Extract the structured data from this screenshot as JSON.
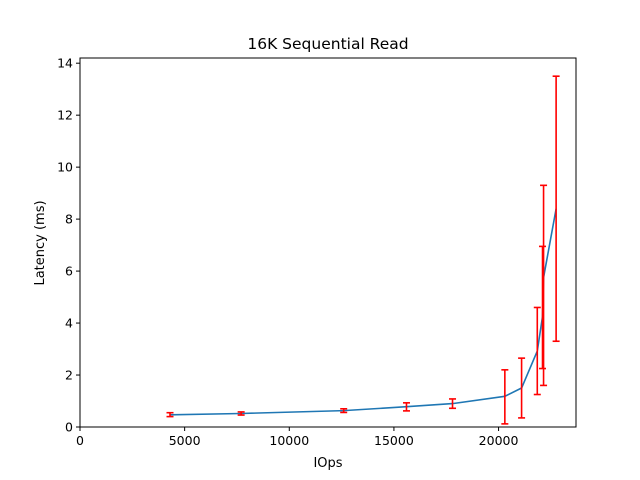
{
  "chart_data": {
    "type": "line",
    "title": "16K  Sequential Read",
    "xlabel": "IOps",
    "ylabel": "Latency (ms)",
    "xlim": [
      0,
      23700
    ],
    "ylim": [
      0,
      14.2
    ],
    "xticks": [
      0,
      5000,
      10000,
      15000,
      20000
    ],
    "xtick_labels": [
      "0",
      "5000",
      "10000",
      "15000",
      "20000"
    ],
    "yticks": [
      0,
      2,
      4,
      6,
      8,
      10,
      12,
      14
    ],
    "ytick_labels": [
      "0",
      "2",
      "4",
      "6",
      "8",
      "10",
      "12",
      "14"
    ],
    "grid": false,
    "legend": "none",
    "series": [
      {
        "color": "#1f77b4",
        "error_color": "#ff0000",
        "x": [
          4300,
          7700,
          12600,
          15600,
          17800,
          20300,
          21100,
          21850,
          22100,
          22150,
          22750
        ],
        "y": [
          0.47,
          0.52,
          0.63,
          0.78,
          0.9,
          1.18,
          1.5,
          2.92,
          4.25,
          5.75,
          8.4
        ],
        "err_low": [
          0.4,
          0.46,
          0.56,
          0.62,
          0.72,
          0.12,
          0.35,
          1.25,
          2.25,
          1.6,
          3.3
        ],
        "err_high": [
          0.55,
          0.58,
          0.7,
          0.93,
          1.08,
          2.2,
          2.65,
          4.6,
          6.95,
          9.3,
          13.5
        ]
      }
    ]
  }
}
